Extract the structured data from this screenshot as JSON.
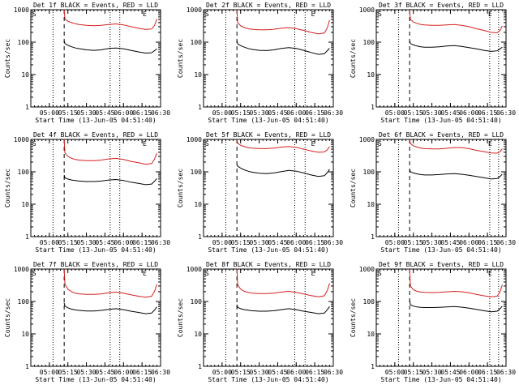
{
  "colors": {
    "events": "#000000",
    "lld": "#d42020"
  },
  "x_tick_labels": [
    "05:00",
    "05:15",
    "05:30",
    "05:45",
    "06:00",
    "06:15",
    "06:30"
  ],
  "x_ticks_hours": [
    5.0,
    5.25,
    5.5,
    5.75,
    6.0,
    6.25,
    6.5
  ],
  "xlim_hours": [
    4.75,
    6.5
  ],
  "y_tick_labels": [
    "1",
    "10",
    "100",
    "1000"
  ],
  "y_ticks": [
    1,
    10,
    100,
    1000
  ],
  "ylim": [
    1,
    1000
  ],
  "y_scale": "log",
  "ylabel": "Counts/sec",
  "xlabel": "Start Time (13-Jun-05 04:51:40)",
  "marker_s": "S",
  "marker_e": "E",
  "chart_data": [
    {
      "type": "line",
      "title": "Det 1f BLACK = Events, RED = LLD",
      "dotted_lines_hours": [
        5.05,
        5.82,
        5.95
      ],
      "dashed_line_hours": 5.2,
      "s_marker_hours": 4.77,
      "e_marker_hours": 6.26,
      "series": [
        {
          "name": "Events",
          "x": [
            5.2,
            5.21,
            5.25,
            5.3,
            5.35,
            5.4,
            5.5,
            5.6,
            5.7,
            5.8,
            5.9,
            6.0,
            6.1,
            6.2,
            6.3,
            6.38,
            6.42,
            6.45
          ],
          "y": [
            110,
            90,
            80,
            72,
            66,
            63,
            58,
            56,
            58,
            64,
            66,
            62,
            56,
            50,
            46,
            47,
            55,
            62
          ]
        },
        {
          "name": "LLD",
          "x": [
            5.2,
            5.21,
            5.25,
            5.3,
            5.35,
            5.4,
            5.5,
            5.6,
            5.7,
            5.8,
            5.9,
            6.0,
            6.1,
            6.2,
            6.3,
            6.38,
            6.42,
            6.45
          ],
          "y": [
            1000,
            520,
            440,
            400,
            370,
            350,
            330,
            320,
            330,
            350,
            365,
            340,
            300,
            270,
            245,
            255,
            330,
            520
          ]
        }
      ]
    },
    {
      "type": "line",
      "title": "Det 2f BLACK = Events, RED = LLD",
      "dotted_lines_hours": [
        5.05,
        5.98,
        6.12
      ],
      "dashed_line_hours": 5.2,
      "s_marker_hours": 4.77,
      "e_marker_hours": 6.2,
      "series": [
        {
          "name": "Events",
          "x": [
            5.2,
            5.21,
            5.25,
            5.3,
            5.35,
            5.4,
            5.5,
            5.6,
            5.7,
            5.8,
            5.9,
            6.0,
            6.1,
            6.2,
            6.3,
            6.38,
            6.42,
            6.45
          ],
          "y": [
            110,
            88,
            78,
            70,
            64,
            60,
            56,
            55,
            58,
            64,
            68,
            64,
            56,
            48,
            42,
            44,
            55,
            65
          ]
        },
        {
          "name": "LLD",
          "x": [
            5.2,
            5.21,
            5.25,
            5.3,
            5.35,
            5.4,
            5.5,
            5.6,
            5.7,
            5.8,
            5.9,
            6.0,
            6.1,
            6.2,
            6.3,
            6.38,
            6.42,
            6.45
          ],
          "y": [
            1000,
            400,
            320,
            280,
            260,
            250,
            240,
            240,
            250,
            270,
            280,
            260,
            230,
            200,
            180,
            190,
            280,
            480
          ]
        }
      ]
    },
    {
      "type": "line",
      "title": "Det 3f BLACK = Events, RED = LLD",
      "dotted_lines_hours": [
        5.05,
        6.28,
        6.4
      ],
      "dashed_line_hours": 5.2,
      "s_marker_hours": 4.77,
      "e_marker_hours": 6.26,
      "series": [
        {
          "name": "Events",
          "x": [
            5.2,
            5.21,
            5.25,
            5.3,
            5.35,
            5.4,
            5.5,
            5.6,
            5.7,
            5.8,
            5.9,
            6.0,
            6.1,
            6.2,
            6.3,
            6.38,
            6.42,
            6.45
          ],
          "y": [
            110,
            90,
            82,
            76,
            72,
            70,
            70,
            72,
            76,
            78,
            74,
            68,
            62,
            56,
            52,
            54,
            62,
            70
          ]
        },
        {
          "name": "LLD",
          "x": [
            5.2,
            5.21,
            5.25,
            5.3,
            5.35,
            5.4,
            5.5,
            5.6,
            5.7,
            5.8,
            5.9,
            6.0,
            6.1,
            6.2,
            6.3,
            6.38,
            6.42,
            6.45
          ],
          "y": [
            1000,
            500,
            420,
            380,
            350,
            340,
            330,
            330,
            340,
            350,
            330,
            300,
            260,
            230,
            200,
            195,
            230,
            320
          ]
        }
      ]
    },
    {
      "type": "line",
      "title": "Det 4f BLACK = Events, RED = LLD",
      "dotted_lines_hours": [
        5.05,
        5.82,
        5.95
      ],
      "dashed_line_hours": 5.2,
      "s_marker_hours": 4.77,
      "e_marker_hours": 6.26,
      "series": [
        {
          "name": "Events",
          "x": [
            5.2,
            5.21,
            5.25,
            5.3,
            5.35,
            5.4,
            5.5,
            5.6,
            5.7,
            5.8,
            5.9,
            6.0,
            6.1,
            6.2,
            6.3,
            6.38,
            6.42,
            6.45
          ],
          "y": [
            80,
            65,
            60,
            56,
            54,
            52,
            50,
            50,
            52,
            56,
            58,
            54,
            48,
            44,
            40,
            42,
            52,
            62
          ]
        },
        {
          "name": "LLD",
          "x": [
            5.2,
            5.21,
            5.25,
            5.3,
            5.35,
            5.4,
            5.5,
            5.6,
            5.7,
            5.8,
            5.9,
            6.0,
            6.1,
            6.2,
            6.3,
            6.38,
            6.42,
            6.45
          ],
          "y": [
            1000,
            380,
            300,
            260,
            240,
            230,
            220,
            220,
            230,
            250,
            260,
            240,
            210,
            190,
            170,
            180,
            250,
            380
          ]
        }
      ]
    },
    {
      "type": "line",
      "title": "Det 5f BLACK = Events, RED = LLD",
      "dotted_lines_hours": [
        5.05,
        5.98,
        6.12
      ],
      "dashed_line_hours": 5.2,
      "s_marker_hours": 4.77,
      "e_marker_hours": 6.2,
      "series": [
        {
          "name": "Events",
          "x": [
            5.2,
            5.21,
            5.25,
            5.3,
            5.35,
            5.4,
            5.5,
            5.6,
            5.7,
            5.8,
            5.9,
            6.0,
            6.1,
            6.2,
            6.3,
            6.38,
            6.42,
            6.45
          ],
          "y": [
            170,
            150,
            130,
            115,
            105,
            98,
            90,
            88,
            92,
            102,
            110,
            105,
            92,
            80,
            72,
            76,
            95,
            120
          ]
        },
        {
          "name": "LLD",
          "x": [
            5.2,
            5.21,
            5.25,
            5.3,
            5.35,
            5.4,
            5.5,
            5.6,
            5.7,
            5.8,
            5.9,
            6.0,
            6.1,
            6.2,
            6.3,
            6.38,
            6.42,
            6.45
          ],
          "y": [
            1000,
            760,
            660,
            600,
            560,
            540,
            520,
            520,
            540,
            580,
            600,
            570,
            500,
            440,
            400,
            410,
            480,
            600
          ]
        }
      ]
    },
    {
      "type": "line",
      "title": "Det 6f BLACK = Events, RED = LLD",
      "dotted_lines_hours": [
        5.05,
        6.28,
        6.4
      ],
      "dashed_line_hours": 5.2,
      "s_marker_hours": 4.77,
      "e_marker_hours": 6.26,
      "series": [
        {
          "name": "Events",
          "x": [
            5.2,
            5.21,
            5.25,
            5.3,
            5.35,
            5.4,
            5.5,
            5.6,
            5.7,
            5.8,
            5.9,
            6.0,
            6.1,
            6.2,
            6.3,
            6.38,
            6.42,
            6.45
          ],
          "y": [
            120,
            100,
            92,
            86,
            82,
            80,
            80,
            82,
            86,
            88,
            84,
            78,
            72,
            66,
            60,
            62,
            72,
            85
          ]
        },
        {
          "name": "LLD",
          "x": [
            5.2,
            5.21,
            5.25,
            5.3,
            5.35,
            5.4,
            5.5,
            5.6,
            5.7,
            5.8,
            5.9,
            6.0,
            6.1,
            6.2,
            6.3,
            6.38,
            6.42,
            6.45
          ],
          "y": [
            1000,
            740,
            640,
            580,
            540,
            520,
            510,
            510,
            530,
            560,
            560,
            520,
            460,
            420,
            380,
            375,
            420,
            520
          ]
        }
      ]
    },
    {
      "type": "line",
      "title": "Det 7f BLACK = Events, RED = LLD",
      "dotted_lines_hours": [
        5.05,
        5.82,
        5.95
      ],
      "dashed_line_hours": 5.2,
      "s_marker_hours": 4.77,
      "e_marker_hours": 6.26,
      "series": [
        {
          "name": "Events",
          "x": [
            5.2,
            5.21,
            5.25,
            5.3,
            5.35,
            5.4,
            5.5,
            5.6,
            5.7,
            5.8,
            5.9,
            6.0,
            6.1,
            6.2,
            6.3,
            6.38,
            6.42,
            6.45
          ],
          "y": [
            90,
            72,
            64,
            58,
            55,
            53,
            51,
            51,
            53,
            57,
            60,
            56,
            50,
            46,
            42,
            44,
            55,
            68
          ]
        },
        {
          "name": "LLD",
          "x": [
            5.2,
            5.21,
            5.25,
            5.3,
            5.35,
            5.4,
            5.5,
            5.6,
            5.7,
            5.8,
            5.9,
            6.0,
            6.1,
            6.2,
            6.3,
            6.38,
            6.42,
            6.45
          ],
          "y": [
            1000,
            340,
            240,
            200,
            180,
            172,
            165,
            165,
            172,
            185,
            195,
            180,
            160,
            145,
            135,
            145,
            210,
            340
          ]
        }
      ]
    },
    {
      "type": "line",
      "title": "Det 8f BLACK = Events, RED = LLD",
      "dotted_lines_hours": [
        5.05,
        5.98,
        6.12
      ],
      "dashed_line_hours": 5.2,
      "s_marker_hours": 4.77,
      "e_marker_hours": 6.2,
      "series": [
        {
          "name": "Events",
          "x": [
            5.2,
            5.21,
            5.25,
            5.3,
            5.35,
            5.4,
            5.5,
            5.6,
            5.7,
            5.8,
            5.9,
            6.0,
            6.1,
            6.2,
            6.3,
            6.38,
            6.42,
            6.45
          ],
          "y": [
            80,
            66,
            60,
            56,
            54,
            52,
            50,
            50,
            52,
            56,
            60,
            56,
            50,
            46,
            42,
            44,
            56,
            70
          ]
        },
        {
          "name": "LLD",
          "x": [
            5.2,
            5.21,
            5.25,
            5.3,
            5.35,
            5.4,
            5.5,
            5.6,
            5.7,
            5.8,
            5.9,
            6.0,
            6.1,
            6.2,
            6.3,
            6.38,
            6.42,
            6.45
          ],
          "y": [
            1000,
            330,
            240,
            205,
            190,
            182,
            175,
            175,
            182,
            195,
            205,
            190,
            170,
            152,
            140,
            150,
            220,
            360
          ]
        }
      ]
    },
    {
      "type": "line",
      "title": "Det 9f BLACK = Events, RED = LLD",
      "dotted_lines_hours": [
        5.05,
        6.28,
        6.4
      ],
      "dashed_line_hours": 5.2,
      "s_marker_hours": 4.77,
      "e_marker_hours": 6.26,
      "series": [
        {
          "name": "Events",
          "x": [
            5.2,
            5.21,
            5.25,
            5.3,
            5.35,
            5.4,
            5.5,
            5.6,
            5.7,
            5.8,
            5.9,
            6.0,
            6.1,
            6.2,
            6.3,
            6.38,
            6.42,
            6.45
          ],
          "y": [
            110,
            80,
            72,
            68,
            66,
            65,
            65,
            66,
            68,
            70,
            67,
            62,
            57,
            52,
            48,
            50,
            60,
            72
          ]
        },
        {
          "name": "LLD",
          "x": [
            5.2,
            5.21,
            5.25,
            5.3,
            5.35,
            5.4,
            5.5,
            5.6,
            5.7,
            5.8,
            5.9,
            6.0,
            6.1,
            6.2,
            6.3,
            6.38,
            6.42,
            6.45
          ],
          "y": [
            1000,
            300,
            230,
            205,
            195,
            190,
            188,
            190,
            198,
            205,
            200,
            185,
            165,
            150,
            140,
            145,
            200,
            330
          ]
        }
      ]
    }
  ]
}
